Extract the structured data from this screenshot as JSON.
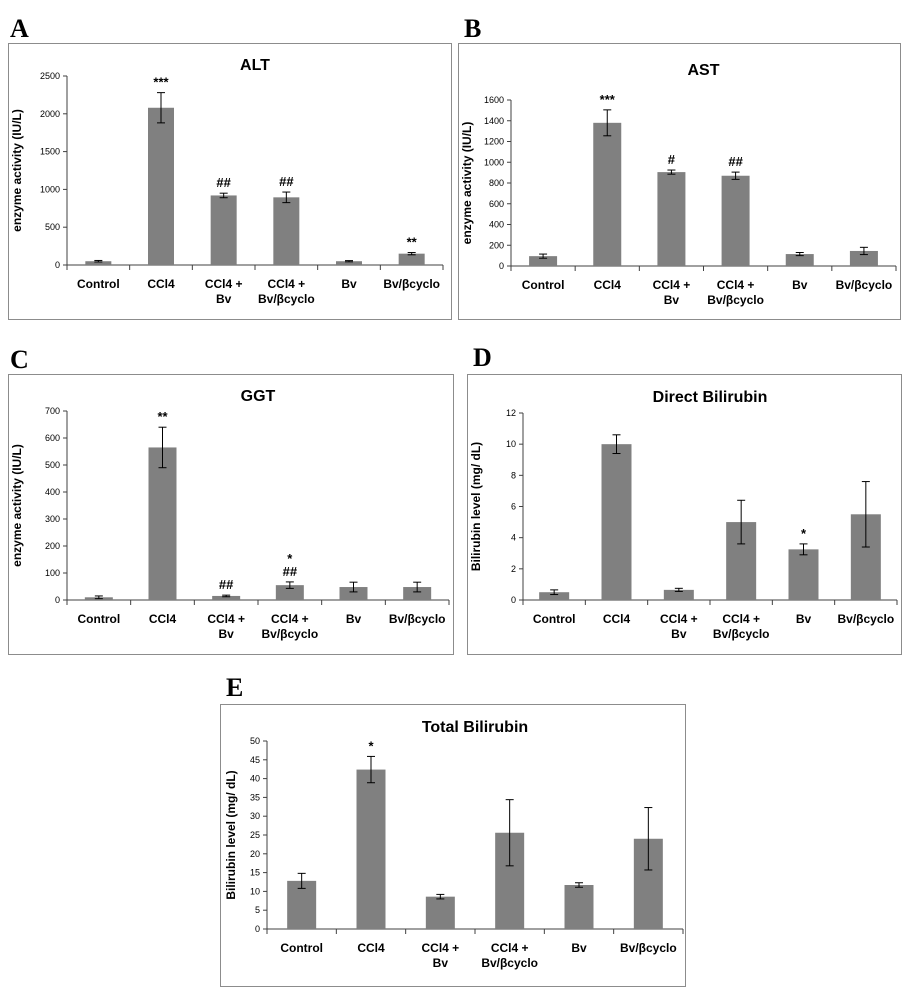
{
  "chart_data": [
    {
      "panel": "A",
      "type": "bar",
      "title": "ALT",
      "ylabel": "enzyme activity (IU/L)",
      "xlabel": "",
      "ylim": [
        0,
        2500
      ],
      "yticks": [
        0,
        500,
        1000,
        1500,
        2000,
        2500
      ],
      "ytick_labels": [
        "0",
        "500",
        "1000",
        "1500",
        "2000",
        "2500"
      ],
      "categories": [
        "Control",
        "CCl4",
        "CCl4 +\nBv",
        "CCl4 +\nBv/βcyclo",
        "Bv",
        "Bv/βcyclo"
      ],
      "values": [
        50,
        2080,
        920,
        895,
        50,
        150
      ],
      "errors": [
        10,
        200,
        30,
        70,
        8,
        15
      ],
      "annotations": [
        "",
        "***",
        "##",
        "##",
        "",
        "**"
      ],
      "bar_color": "#808080",
      "grid": false
    },
    {
      "panel": "B",
      "type": "bar",
      "title": "AST",
      "ylabel": "enzyme activity (IU/L)",
      "xlabel": "",
      "ylim": [
        0,
        1600
      ],
      "yticks": [
        0,
        200,
        400,
        600,
        800,
        1000,
        1200,
        1400,
        1600
      ],
      "ytick_labels": [
        "0",
        "200",
        "400",
        "600",
        "800",
        "1000",
        "1200",
        "1400",
        "1600"
      ],
      "categories": [
        "Control",
        "CCl4",
        "CCl4 +\nBv",
        "CCl4 +\nBv/βcyclo",
        "Bv",
        "Bv/βcyclo"
      ],
      "values": [
        95,
        1380,
        905,
        870,
        115,
        145
      ],
      "errors": [
        20,
        125,
        20,
        35,
        15,
        35
      ],
      "annotations": [
        "",
        "***",
        "#",
        "##",
        "",
        ""
      ],
      "bar_color": "#808080",
      "grid": false
    },
    {
      "panel": "C",
      "type": "bar",
      "title": "GGT",
      "ylabel": "enzyme activity (IU/L)",
      "xlabel": "",
      "ylim": [
        0,
        700
      ],
      "yticks": [
        0,
        100,
        200,
        300,
        400,
        500,
        600,
        700
      ],
      "ytick_labels": [
        "0",
        "100",
        "200",
        "300",
        "400",
        "500",
        "600",
        "700"
      ],
      "categories": [
        "Control",
        "CCl4",
        "CCl4 +\nBv",
        "CCl4 +\nBv/βcyclo",
        "Bv",
        "Bv/βcyclo"
      ],
      "values": [
        10,
        565,
        15,
        55,
        48,
        48
      ],
      "errors": [
        5,
        75,
        3,
        12,
        18,
        18
      ],
      "annotations": [
        "",
        "**",
        "##",
        "*\n##",
        "",
        ""
      ],
      "bar_color": "#808080",
      "grid": false
    },
    {
      "panel": "D",
      "type": "bar",
      "title": "Direct Bilirubin",
      "ylabel": "Bilirubin level (mg/ dL)",
      "xlabel": "",
      "ylim": [
        0,
        12
      ],
      "yticks": [
        0,
        2,
        4,
        6,
        8,
        10,
        12
      ],
      "ytick_labels": [
        "0",
        "2",
        "4",
        "6",
        "8",
        "10",
        "12"
      ],
      "categories": [
        "Control",
        "CCl4",
        "CCl4 +\nBv",
        "CCl4 +\nBv/βcyclo",
        "Bv",
        "Bv/βcyclo"
      ],
      "values": [
        0.5,
        10.0,
        0.65,
        5.0,
        3.25,
        5.5
      ],
      "errors": [
        0.15,
        0.6,
        0.1,
        1.4,
        0.35,
        2.1
      ],
      "annotations": [
        "",
        "",
        "",
        "",
        "*",
        ""
      ],
      "bar_color": "#808080",
      "grid": false
    },
    {
      "panel": "E",
      "type": "bar",
      "title": "Total Bilirubin",
      "ylabel": "Bilirubin level (mg/ dL)",
      "xlabel": "",
      "ylim": [
        0,
        50
      ],
      "yticks": [
        0,
        5,
        10,
        15,
        20,
        25,
        30,
        35,
        40,
        45,
        50
      ],
      "ytick_labels": [
        "0",
        "5",
        "10",
        "15",
        "20",
        "25",
        "30",
        "35",
        "40",
        "45",
        "50"
      ],
      "categories": [
        "Control",
        "CCl4",
        "CCl4 +\nBv",
        "CCl4 +\nBv/βcyclo",
        "Bv",
        "Bv/βcyclo"
      ],
      "values": [
        12.8,
        42.4,
        8.6,
        25.6,
        11.7,
        24.0
      ],
      "errors": [
        2.0,
        3.5,
        0.6,
        8.8,
        0.6,
        8.3
      ],
      "annotations": [
        "",
        "*",
        "",
        "",
        "",
        ""
      ],
      "bar_color": "#808080",
      "grid": false
    }
  ]
}
